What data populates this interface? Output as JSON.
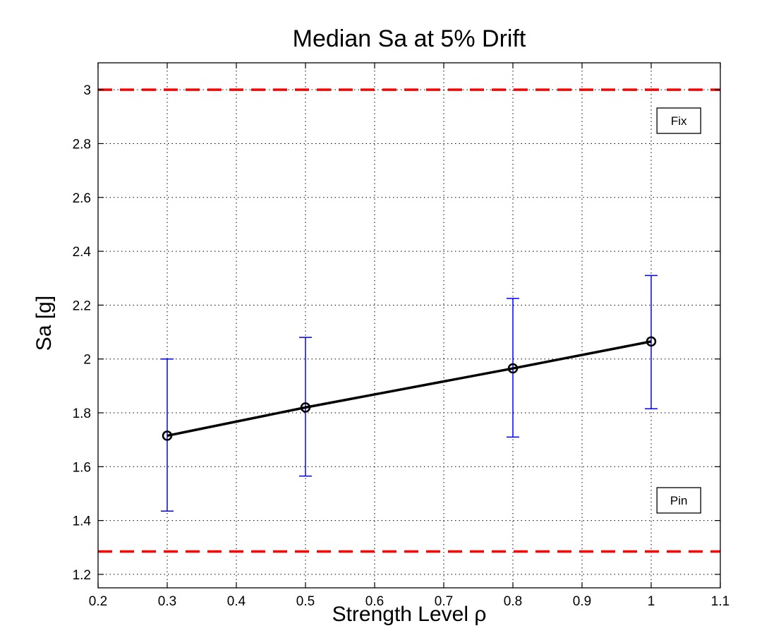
{
  "chart_data": {
    "type": "line",
    "title": "Median Sa at 5% Drift",
    "xlabel": "Strength Level ρ",
    "ylabel": "Sa [g]",
    "xlim": [
      0.2,
      1.1
    ],
    "ylim": [
      1.15,
      3.1
    ],
    "xticks": [
      0.2,
      0.3,
      0.4,
      0.5,
      0.6,
      0.7,
      0.8,
      0.9,
      1,
      1.1
    ],
    "xtick_labels": [
      "0.2",
      "0.3",
      "0.4",
      "0.5",
      "0.6",
      "0.7",
      "0.8",
      "0.9",
      "1",
      "1.1"
    ],
    "yticks": [
      1.2,
      1.4,
      1.6,
      1.8,
      2,
      2.2,
      2.4,
      2.6,
      2.8,
      3
    ],
    "ytick_labels": [
      "1.2",
      "1.4",
      "1.6",
      "1.8",
      "2",
      "2.2",
      "2.4",
      "2.6",
      "2.8",
      "3"
    ],
    "grid": true,
    "colors": {
      "series": "#000000",
      "errorbar": "#0000ff",
      "reference": "#ff0000"
    },
    "series": [
      {
        "x": [
          0.3,
          0.5,
          0.8,
          1.0
        ],
        "y": [
          1.715,
          1.82,
          1.965,
          2.065
        ],
        "lower": [
          1.435,
          1.565,
          1.71,
          1.815
        ],
        "upper": [
          2.0,
          2.08,
          2.225,
          2.31
        ]
      }
    ],
    "reference_lines": [
      {
        "y": 3.0,
        "label": "Fix"
      },
      {
        "y": 1.285,
        "label": "Pin"
      }
    ],
    "annotations": [
      {
        "text": "Fix",
        "x": 1.04,
        "y": 2.885
      },
      {
        "text": "Pin",
        "x": 1.04,
        "y": 1.475
      }
    ]
  }
}
